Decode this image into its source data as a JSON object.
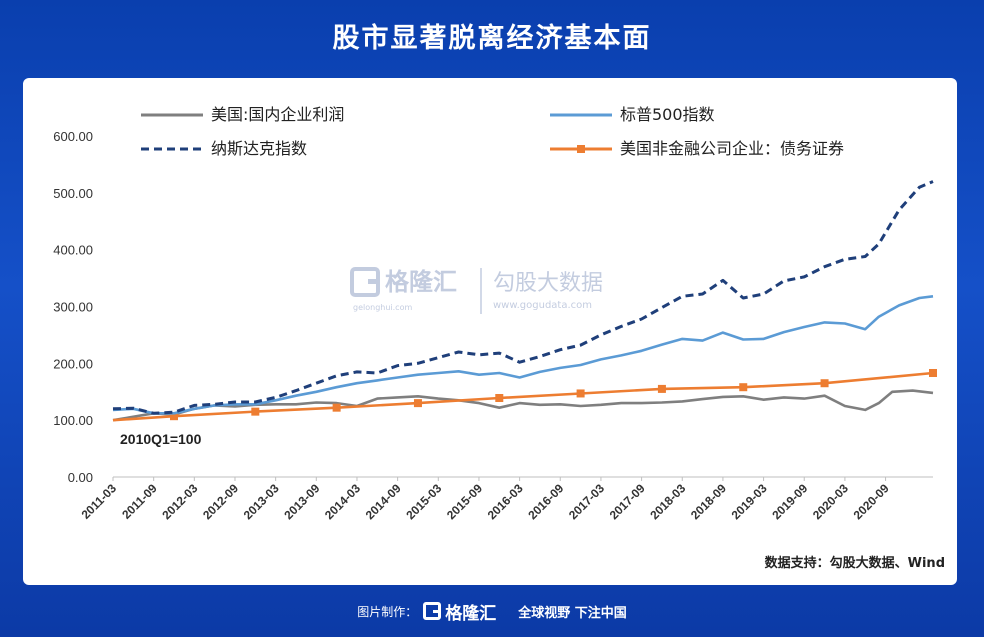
{
  "header": {
    "title": "股市显著脱离经济基本面"
  },
  "watermark": {
    "brand": "格隆汇",
    "domain_small": "gelonghui.com",
    "partner": "勾股大数据",
    "partner_url": "www.gogudata.com"
  },
  "source_note": "数据支持：勾股大数据、Wind",
  "footer": {
    "made_by": "图片制作：",
    "brand": "格隆汇",
    "slogan": "全球视野 下注中国"
  },
  "chart_data": {
    "type": "line",
    "annotation": "2010Q1=100",
    "ylim": [
      0,
      600
    ],
    "yticks": [
      "0.00",
      "100.00",
      "200.00",
      "300.00",
      "400.00",
      "500.00",
      "600.00"
    ],
    "xticks": [
      "2011-03",
      "2011-09",
      "2012-03",
      "2012-09",
      "2013-03",
      "2013-09",
      "2014-03",
      "2014-09",
      "2015-03",
      "2015-09",
      "2016-03",
      "2016-09",
      "2017-03",
      "2017-09",
      "2018-03",
      "2018-09",
      "2019-03",
      "2019-09",
      "2020-03",
      "2020-09"
    ],
    "x_months": [
      0,
      1,
      2,
      3,
      4,
      5,
      6,
      7,
      8,
      9,
      10,
      11,
      12,
      13,
      14,
      15,
      16,
      17,
      18,
      19,
      20,
      21,
      22,
      23,
      24,
      25,
      26,
      27,
      28,
      29,
      30,
      31,
      32,
      33,
      34,
      35,
      36,
      37,
      38,
      39,
      40,
      41,
      42,
      43,
      44,
      45,
      46,
      47,
      48,
      49,
      50,
      51,
      52,
      53,
      54,
      55,
      56,
      57,
      58,
      59,
      60,
      61,
      62,
      63,
      64,
      65,
      66,
      67,
      68,
      69,
      70,
      71,
      72,
      73,
      74,
      75,
      76,
      77,
      78,
      79,
      80,
      81,
      82,
      83,
      84,
      85,
      86,
      87,
      88,
      89,
      90,
      91,
      92,
      93,
      94,
      95,
      96,
      97,
      98,
      99,
      100,
      101,
      102,
      103,
      104,
      105,
      106,
      107,
      108,
      109,
      110,
      111,
      112,
      113,
      114,
      115,
      116,
      117,
      118,
      119,
      120,
      121
    ],
    "series": [
      {
        "name": "美国:国内企业利润",
        "color": "#7f7f7f",
        "style": "solid",
        "points": [
          [
            0,
            100
          ],
          [
            6,
            112
          ],
          [
            9,
            110
          ],
          [
            12,
            120
          ],
          [
            15,
            126
          ],
          [
            18,
            124
          ],
          [
            21,
            127
          ],
          [
            24,
            128
          ],
          [
            27,
            128
          ],
          [
            30,
            131
          ],
          [
            33,
            130
          ],
          [
            36,
            125
          ],
          [
            39,
            138
          ],
          [
            42,
            140
          ],
          [
            45,
            142
          ],
          [
            48,
            138
          ],
          [
            51,
            135
          ],
          [
            54,
            130
          ],
          [
            57,
            122
          ],
          [
            60,
            130
          ],
          [
            63,
            127
          ],
          [
            66,
            128
          ],
          [
            69,
            125
          ],
          [
            72,
            127
          ],
          [
            75,
            130
          ],
          [
            78,
            130
          ],
          [
            81,
            131
          ],
          [
            84,
            133
          ],
          [
            87,
            137
          ],
          [
            90,
            141
          ],
          [
            93,
            142
          ],
          [
            96,
            136
          ],
          [
            99,
            140
          ],
          [
            102,
            138
          ],
          [
            105,
            143
          ],
          [
            108,
            125
          ],
          [
            111,
            118
          ],
          [
            113,
            130
          ],
          [
            115,
            150
          ],
          [
            118,
            152
          ],
          [
            121,
            148
          ]
        ]
      },
      {
        "name": "标普500指数",
        "color": "#5b9bd5",
        "style": "solid",
        "points": [
          [
            0,
            118
          ],
          [
            3,
            120
          ],
          [
            6,
            112
          ],
          [
            9,
            112
          ],
          [
            12,
            120
          ],
          [
            15,
            126
          ],
          [
            18,
            128
          ],
          [
            21,
            128
          ],
          [
            24,
            135
          ],
          [
            27,
            143
          ],
          [
            30,
            150
          ],
          [
            33,
            158
          ],
          [
            36,
            165
          ],
          [
            39,
            170
          ],
          [
            42,
            175
          ],
          [
            45,
            180
          ],
          [
            48,
            183
          ],
          [
            51,
            186
          ],
          [
            54,
            180
          ],
          [
            57,
            183
          ],
          [
            60,
            175
          ],
          [
            63,
            185
          ],
          [
            66,
            192
          ],
          [
            69,
            197
          ],
          [
            72,
            207
          ],
          [
            75,
            214
          ],
          [
            78,
            222
          ],
          [
            81,
            233
          ],
          [
            84,
            243
          ],
          [
            87,
            240
          ],
          [
            90,
            254
          ],
          [
            93,
            242
          ],
          [
            96,
            243
          ],
          [
            99,
            255
          ],
          [
            102,
            264
          ],
          [
            105,
            272
          ],
          [
            108,
            270
          ],
          [
            111,
            260
          ],
          [
            113,
            282
          ],
          [
            116,
            302
          ],
          [
            119,
            315
          ],
          [
            121,
            318
          ]
        ]
      },
      {
        "name": "纳斯达克指数",
        "color": "#1f3f7a",
        "style": "dashed",
        "points": [
          [
            0,
            120
          ],
          [
            3,
            121
          ],
          [
            6,
            112
          ],
          [
            9,
            114
          ],
          [
            12,
            126
          ],
          [
            15,
            128
          ],
          [
            18,
            132
          ],
          [
            21,
            132
          ],
          [
            24,
            140
          ],
          [
            27,
            152
          ],
          [
            30,
            165
          ],
          [
            33,
            178
          ],
          [
            36,
            185
          ],
          [
            39,
            183
          ],
          [
            42,
            196
          ],
          [
            45,
            200
          ],
          [
            48,
            210
          ],
          [
            51,
            220
          ],
          [
            54,
            215
          ],
          [
            57,
            218
          ],
          [
            60,
            202
          ],
          [
            63,
            212
          ],
          [
            66,
            224
          ],
          [
            69,
            232
          ],
          [
            72,
            250
          ],
          [
            75,
            265
          ],
          [
            78,
            278
          ],
          [
            81,
            298
          ],
          [
            84,
            318
          ],
          [
            87,
            322
          ],
          [
            90,
            346
          ],
          [
            93,
            315
          ],
          [
            96,
            322
          ],
          [
            99,
            345
          ],
          [
            102,
            352
          ],
          [
            105,
            370
          ],
          [
            108,
            383
          ],
          [
            111,
            388
          ],
          [
            113,
            410
          ],
          [
            116,
            470
          ],
          [
            119,
            510
          ],
          [
            121,
            520
          ]
        ]
      },
      {
        "name": "美国非金融公司企业：债务证券",
        "color": "#ed7d31",
        "style": "marker",
        "points": [
          [
            0,
            100
          ],
          [
            9,
            107
          ],
          [
            21,
            115
          ],
          [
            33,
            122
          ],
          [
            45,
            130
          ],
          [
            57,
            139
          ],
          [
            69,
            147
          ],
          [
            81,
            155
          ],
          [
            93,
            158
          ],
          [
            105,
            165
          ],
          [
            121,
            183
          ]
        ],
        "marker_x": [
          9,
          21,
          33,
          45,
          57,
          69,
          81,
          93,
          105,
          121
        ]
      }
    ]
  }
}
